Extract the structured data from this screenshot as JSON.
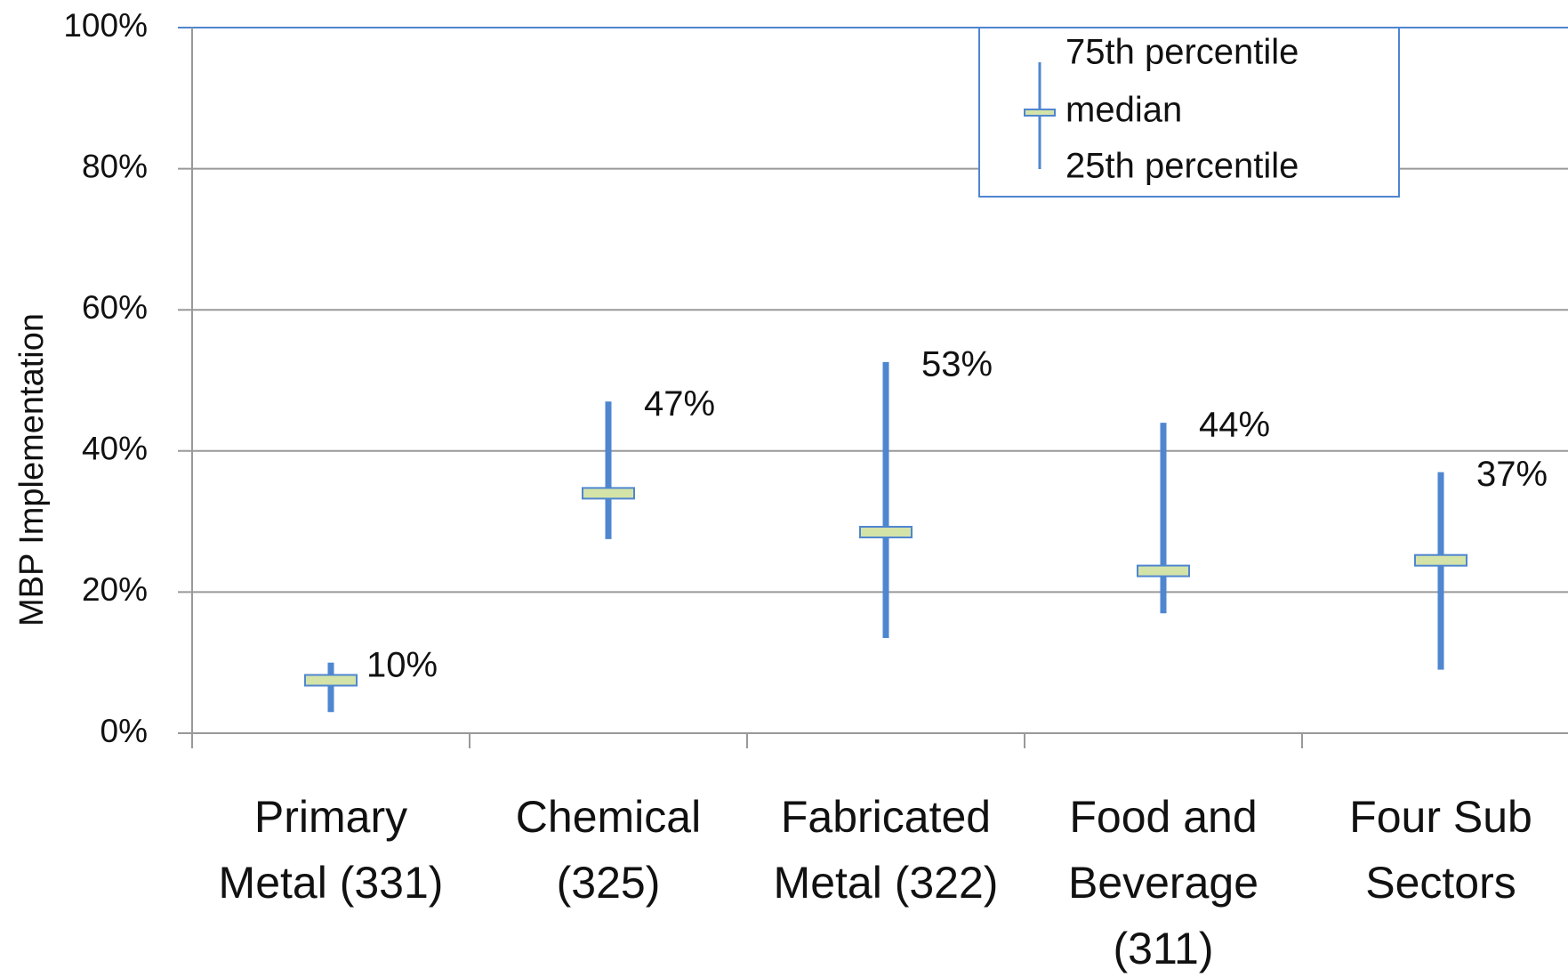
{
  "chart_data": {
    "type": "range",
    "y_label": "MBP Implementation",
    "categories": [
      "Primary Metal (331)",
      "Chemical (325)",
      "Fabricated Metal (322)",
      "Food and Beverage (311)",
      "Four Sub Sectors"
    ],
    "series": [
      {
        "name": "75th percentile",
        "color": "#4f86d0",
        "values": [
          10,
          47,
          52.6,
          44,
          37
        ],
        "value_labels": [
          "10%",
          "47%",
          "53%",
          "44%",
          "37%"
        ]
      },
      {
        "name": "median",
        "color": "#d4e3a8",
        "values": [
          7.5,
          34,
          28.5,
          23,
          24.5
        ]
      },
      {
        "name": "25th percentile",
        "color": "#4f86d0",
        "values": [
          3,
          27.5,
          13.5,
          17,
          9
        ]
      }
    ],
    "ylim": [
      0,
      100
    ],
    "yticks": [
      {
        "value": 0,
        "label": "0%"
      },
      {
        "value": 20,
        "label": "20%"
      },
      {
        "value": 40,
        "label": "40%"
      },
      {
        "value": 60,
        "label": "60%"
      },
      {
        "value": 80,
        "label": "80%"
      },
      {
        "value": 100,
        "label": "100%"
      }
    ],
    "grid": true
  }
}
